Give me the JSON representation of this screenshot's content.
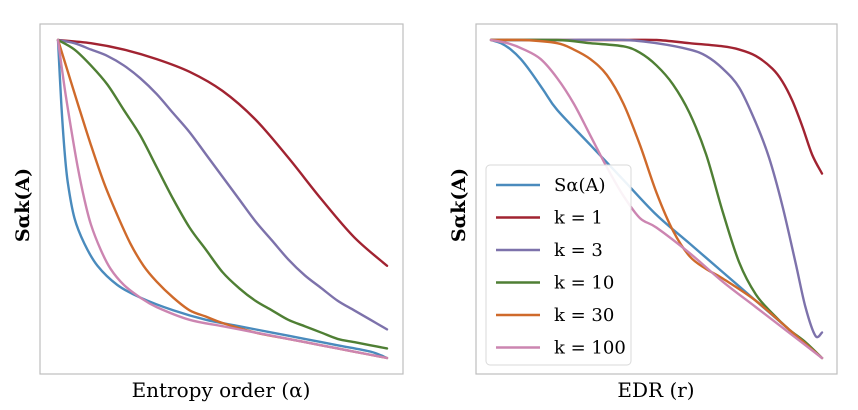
{
  "colors": {
    "s_alpha": "#4a8bbd",
    "k1": "#a12331",
    "k3": "#7d72ab",
    "k10": "#4f7f34",
    "k30": "#cf6a2b",
    "k100": "#cc85b1",
    "frame": "#bdbdbd"
  },
  "chart_data": [
    {
      "type": "line",
      "xlabel": "Entropy order (α)",
      "ylabel": "Sαk(A)",
      "grid": false,
      "ticks": "none",
      "xlim": [
        0,
        1
      ],
      "ylim": [
        0,
        1
      ],
      "series": [
        {
          "key": "s_alpha",
          "x": [
            0.0,
            0.01,
            0.02,
            0.03,
            0.05,
            0.08,
            0.12,
            0.18,
            0.25,
            0.35,
            0.45,
            0.55,
            0.65,
            0.75,
            0.85,
            0.95,
            1.0
          ],
          "y": [
            1.0,
            0.8,
            0.65,
            0.55,
            0.44,
            0.36,
            0.29,
            0.23,
            0.19,
            0.15,
            0.12,
            0.1,
            0.08,
            0.06,
            0.04,
            0.02,
            0.0
          ]
        },
        {
          "key": "k1",
          "x": [
            0.0,
            0.1,
            0.2,
            0.3,
            0.4,
            0.5,
            0.6,
            0.7,
            0.8,
            0.9,
            1.0
          ],
          "y": [
            1.0,
            0.99,
            0.97,
            0.94,
            0.9,
            0.84,
            0.75,
            0.63,
            0.5,
            0.38,
            0.29
          ]
        },
        {
          "key": "k3",
          "x": [
            0.0,
            0.05,
            0.1,
            0.15,
            0.2,
            0.25,
            0.3,
            0.35,
            0.4,
            0.45,
            0.5,
            0.55,
            0.6,
            0.65,
            0.7,
            0.75,
            0.8,
            0.85,
            0.9,
            0.95,
            1.0
          ],
          "y": [
            1.0,
            0.99,
            0.97,
            0.95,
            0.92,
            0.88,
            0.83,
            0.77,
            0.71,
            0.64,
            0.57,
            0.5,
            0.43,
            0.37,
            0.31,
            0.26,
            0.22,
            0.18,
            0.15,
            0.12,
            0.09
          ]
        },
        {
          "key": "k10",
          "x": [
            0.0,
            0.05,
            0.1,
            0.15,
            0.2,
            0.25,
            0.3,
            0.35,
            0.4,
            0.45,
            0.5,
            0.55,
            0.6,
            0.65,
            0.7,
            0.75,
            0.8,
            0.85,
            0.9,
            0.95,
            1.0
          ],
          "y": [
            1.0,
            0.97,
            0.92,
            0.86,
            0.78,
            0.7,
            0.6,
            0.5,
            0.41,
            0.34,
            0.27,
            0.22,
            0.18,
            0.15,
            0.12,
            0.1,
            0.08,
            0.06,
            0.05,
            0.04,
            0.03
          ]
        },
        {
          "key": "k30",
          "x": [
            0.0,
            0.03,
            0.06,
            0.1,
            0.14,
            0.18,
            0.22,
            0.26,
            0.3,
            0.35,
            0.4,
            0.45,
            0.5,
            0.6,
            0.7,
            0.8,
            0.9,
            1.0
          ],
          "y": [
            1.0,
            0.9,
            0.8,
            0.67,
            0.55,
            0.45,
            0.36,
            0.29,
            0.24,
            0.19,
            0.15,
            0.13,
            0.11,
            0.08,
            0.06,
            0.04,
            0.02,
            0.0
          ]
        },
        {
          "key": "k100",
          "x": [
            0.0,
            0.02,
            0.04,
            0.06,
            0.08,
            0.1,
            0.13,
            0.16,
            0.2,
            0.25,
            0.3,
            0.4,
            0.5,
            0.6,
            0.7,
            0.8,
            0.9,
            1.0
          ],
          "y": [
            1.0,
            0.85,
            0.72,
            0.6,
            0.5,
            0.42,
            0.34,
            0.28,
            0.23,
            0.19,
            0.16,
            0.12,
            0.1,
            0.08,
            0.06,
            0.04,
            0.02,
            0.0
          ]
        }
      ]
    },
    {
      "type": "line",
      "xlabel": "EDR (r)",
      "ylabel": "Sαk(A)",
      "grid": false,
      "ticks": "none",
      "legend": "lower-left",
      "xlim": [
        0,
        1
      ],
      "ylim": [
        0,
        1
      ],
      "series": [
        {
          "key": "s_alpha",
          "label": "Sα(A)",
          "x": [
            0.0,
            0.03,
            0.06,
            0.09,
            0.12,
            0.16,
            0.2,
            0.3,
            0.4,
            0.5,
            0.6,
            0.7,
            0.8,
            0.9,
            1.0
          ],
          "y": [
            1.0,
            0.99,
            0.97,
            0.94,
            0.9,
            0.84,
            0.78,
            0.67,
            0.56,
            0.45,
            0.36,
            0.27,
            0.18,
            0.09,
            0.0
          ]
        },
        {
          "key": "k1",
          "label": "k = 1",
          "x": [
            0.0,
            0.1,
            0.2,
            0.3,
            0.4,
            0.5,
            0.6,
            0.7,
            0.75,
            0.8,
            0.85,
            0.88,
            0.91,
            0.94,
            0.97,
            1.0
          ],
          "y": [
            1.0,
            1.0,
            1.0,
            1.0,
            1.0,
            1.0,
            0.99,
            0.98,
            0.97,
            0.95,
            0.91,
            0.87,
            0.81,
            0.73,
            0.64,
            0.58
          ]
        },
        {
          "key": "k3",
          "label": "k = 3",
          "x": [
            0.0,
            0.2,
            0.4,
            0.5,
            0.6,
            0.65,
            0.7,
            0.75,
            0.8,
            0.84,
            0.88,
            0.92,
            0.95,
            0.98,
            1.0
          ],
          "y": [
            1.0,
            1.0,
            1.0,
            0.99,
            0.97,
            0.95,
            0.91,
            0.85,
            0.74,
            0.63,
            0.48,
            0.3,
            0.16,
            0.07,
            0.08
          ]
        },
        {
          "key": "k10",
          "label": "k = 10",
          "x": [
            0.0,
            0.2,
            0.3,
            0.4,
            0.45,
            0.5,
            0.55,
            0.6,
            0.65,
            0.7,
            0.75,
            0.8,
            0.85,
            0.9,
            0.95,
            1.0
          ],
          "y": [
            1.0,
            1.0,
            0.99,
            0.98,
            0.96,
            0.92,
            0.86,
            0.77,
            0.64,
            0.46,
            0.3,
            0.2,
            0.14,
            0.09,
            0.05,
            0.0
          ]
        },
        {
          "key": "k30",
          "label": "k = 30",
          "x": [
            0.0,
            0.1,
            0.2,
            0.25,
            0.3,
            0.35,
            0.4,
            0.45,
            0.5,
            0.55,
            0.6,
            0.65,
            0.7,
            0.8,
            0.9,
            1.0
          ],
          "y": [
            1.0,
            1.0,
            0.99,
            0.97,
            0.94,
            0.89,
            0.8,
            0.67,
            0.52,
            0.4,
            0.32,
            0.28,
            0.25,
            0.18,
            0.09,
            0.0
          ]
        },
        {
          "key": "k100",
          "label": "k = 100",
          "x": [
            0.0,
            0.05,
            0.1,
            0.15,
            0.2,
            0.25,
            0.3,
            0.35,
            0.4,
            0.45,
            0.5,
            0.6,
            0.7,
            0.8,
            0.9,
            1.0
          ],
          "y": [
            1.0,
            0.99,
            0.97,
            0.94,
            0.88,
            0.8,
            0.7,
            0.6,
            0.51,
            0.44,
            0.41,
            0.33,
            0.24,
            0.16,
            0.08,
            0.0
          ]
        }
      ]
    }
  ]
}
